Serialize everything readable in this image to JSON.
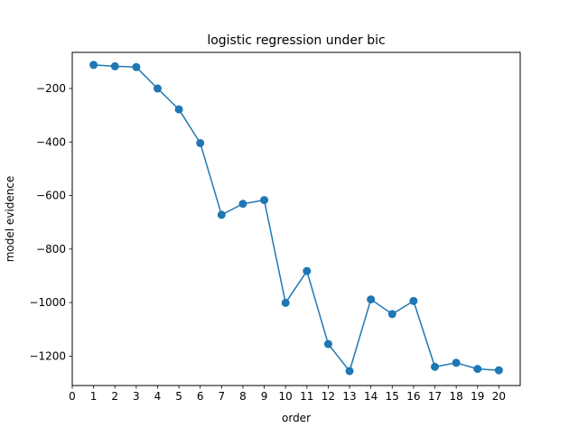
{
  "chart_data": {
    "type": "line",
    "title": "logistic regression under bic",
    "xlabel": "order",
    "ylabel": "model evidence",
    "xlim": [
      0,
      21
    ],
    "ylim": [
      -1310,
      -65
    ],
    "xticks": [
      0,
      1,
      2,
      3,
      4,
      5,
      6,
      7,
      8,
      9,
      10,
      11,
      12,
      13,
      14,
      15,
      16,
      17,
      18,
      19,
      20
    ],
    "xtick_labels": [
      "0",
      "1",
      "2",
      "3",
      "4",
      "5",
      "6",
      "7",
      "8",
      "9",
      "10",
      "11",
      "12",
      "13",
      "14",
      "15",
      "16",
      "17",
      "18",
      "19",
      "20"
    ],
    "yticks": [
      -200,
      -400,
      -600,
      -800,
      -1000,
      -1200
    ],
    "ytick_labels": [
      "−200",
      "−400",
      "−600",
      "−800",
      "−1000",
      "−1200"
    ],
    "grid": false,
    "legend": "none",
    "color": "#1f77b4",
    "marker": "circle",
    "x": [
      1,
      2,
      3,
      4,
      5,
      6,
      7,
      8,
      9,
      10,
      11,
      12,
      13,
      14,
      15,
      16,
      17,
      18,
      19,
      20
    ],
    "y": [
      -112,
      -117,
      -120,
      -200,
      -278,
      -404,
      -672,
      -631,
      -617,
      -1001,
      -882,
      -1155,
      -1256,
      -988,
      -1043,
      -994,
      -1240,
      -1225,
      -1248,
      -1253
    ]
  }
}
